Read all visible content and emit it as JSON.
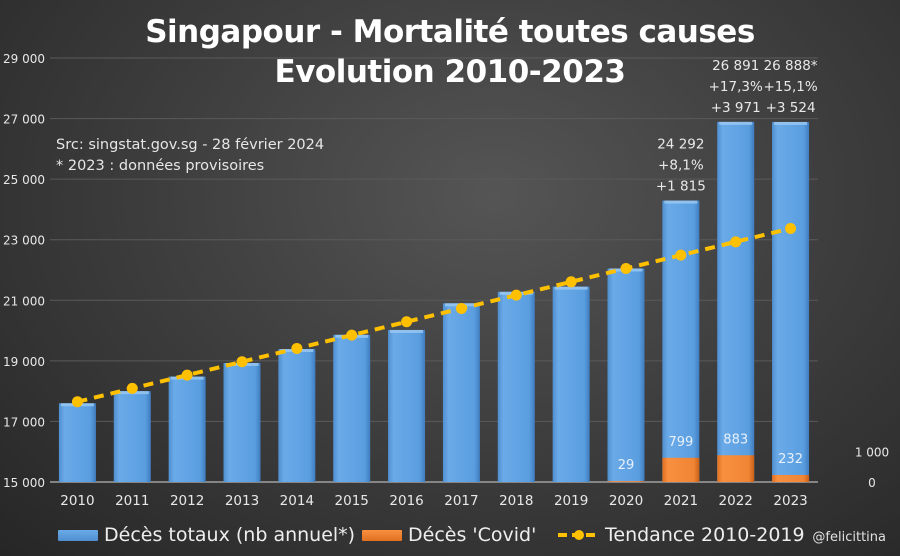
{
  "title_line1": "Singapour - Mortalité toutes causes",
  "title_line2": "Evolution 2010-2023",
  "source_note": "Src: singstat.gov.sg - 28 février 2024",
  "provisional_note": "* 2023 : données provisoires",
  "credit": "@felicittina",
  "colors": {
    "total": "#5b9bd5",
    "covid": "#ed7d31",
    "trend": "#ffc000",
    "grid": "#5a5a5a",
    "text": "#e8e8e8"
  },
  "legend": [
    {
      "label": "Décès totaux (nb annuel*)",
      "icon": "blue-bar-swatch"
    },
    {
      "label": "Décès 'Covid'",
      "icon": "orange-bar-swatch"
    },
    {
      "label": "Tendance 2010-2019",
      "icon": "dashed-line-dot-swatch"
    }
  ],
  "chart_data": {
    "type": "bar",
    "title": "Singapour - Mortalité toutes causes / Evolution 2010-2023",
    "categories": [
      "2010",
      "2011",
      "2012",
      "2013",
      "2014",
      "2015",
      "2016",
      "2017",
      "2018",
      "2019",
      "2020",
      "2021",
      "2022",
      "2023"
    ],
    "series": [
      {
        "name": "Décès totaux (nb annuel*)",
        "type": "bar",
        "axis": "left",
        "values": [
          17600,
          18000,
          18480,
          18930,
          19390,
          19860,
          20020,
          20900,
          21280,
          21450,
          22050,
          24292,
          26891,
          26888
        ]
      },
      {
        "name": "Décès 'Covid'",
        "type": "bar",
        "axis": "right",
        "values": [
          0,
          0,
          0,
          0,
          0,
          0,
          0,
          0,
          0,
          0,
          29,
          799,
          883,
          232
        ]
      },
      {
        "name": "Tendance 2010-2019",
        "type": "line",
        "axis": "left",
        "style": "dashed-with-markers",
        "values": [
          17650,
          18090,
          18530,
          18970,
          19410,
          19850,
          20290,
          20730,
          21170,
          21610,
          22050,
          22490,
          22930,
          23370
        ]
      }
    ],
    "y_left": {
      "ylim": [
        15000,
        29000
      ],
      "ticks": [
        "15 000",
        "17 000",
        "19 000",
        "21 000",
        "23 000",
        "25 000",
        "27 000",
        "29 000"
      ],
      "tick_values": [
        15000,
        17000,
        19000,
        21000,
        23000,
        25000,
        27000,
        29000
      ]
    },
    "y_right": {
      "ylim": [
        0,
        14000
      ],
      "ticks": [
        "0",
        "1 000"
      ],
      "tick_values": [
        0,
        1000
      ]
    },
    "covid_labels": [
      {
        "year": "2020",
        "text": "29"
      },
      {
        "year": "2021",
        "text": "799"
      },
      {
        "year": "2022",
        "text": "883"
      },
      {
        "year": "2023",
        "text": "232"
      }
    ],
    "annotations": [
      {
        "year": "2021",
        "lines": [
          "24 292",
          "+8,1%",
          "+1 815"
        ]
      },
      {
        "year": "2022",
        "lines": [
          "26 891",
          "+17,3%",
          "+3 971"
        ]
      },
      {
        "year": "2023",
        "lines": [
          "26 888*",
          "+15,1%",
          "+3 524"
        ]
      }
    ],
    "grid": true,
    "legend_position": "bottom"
  }
}
